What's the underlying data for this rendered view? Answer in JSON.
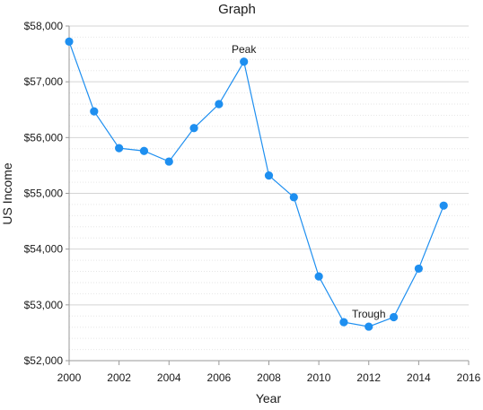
{
  "chart_data": {
    "type": "line",
    "title": "Graph",
    "xlabel": "Year",
    "ylabel": "US Income",
    "xlim": [
      2000,
      2016
    ],
    "ylim": [
      52000,
      58000
    ],
    "x_ticks": [
      2000,
      2002,
      2004,
      2006,
      2008,
      2010,
      2012,
      2014,
      2016
    ],
    "y_ticks": [
      52000,
      53000,
      54000,
      55000,
      56000,
      57000,
      58000
    ],
    "x_tick_labels": [
      "2000",
      "2002",
      "2004",
      "2006",
      "2008",
      "2010",
      "2012",
      "2014",
      "2016"
    ],
    "y_tick_labels": [
      "$52,000",
      "$53,000",
      "$54,000",
      "$55,000",
      "$56,000",
      "$57,000",
      "$58,000"
    ],
    "grid": true,
    "line_color": "#1e8ff0",
    "series": [
      {
        "x": [
          2000,
          2001,
          2002,
          2003,
          2004,
          2005,
          2006,
          2007,
          2008,
          2009,
          2010,
          2011,
          2012,
          2013,
          2014,
          2015
        ],
        "values": [
          57720,
          56470,
          55810,
          55760,
          55570,
          56170,
          56600,
          57360,
          55320,
          54930,
          53510,
          52690,
          52610,
          52780,
          53650,
          54780
        ]
      }
    ],
    "annotations": [
      {
        "text": "Peak",
        "x": 2007,
        "y": 57360
      },
      {
        "text": "Trough",
        "x": 2012,
        "y": 52610
      }
    ]
  }
}
